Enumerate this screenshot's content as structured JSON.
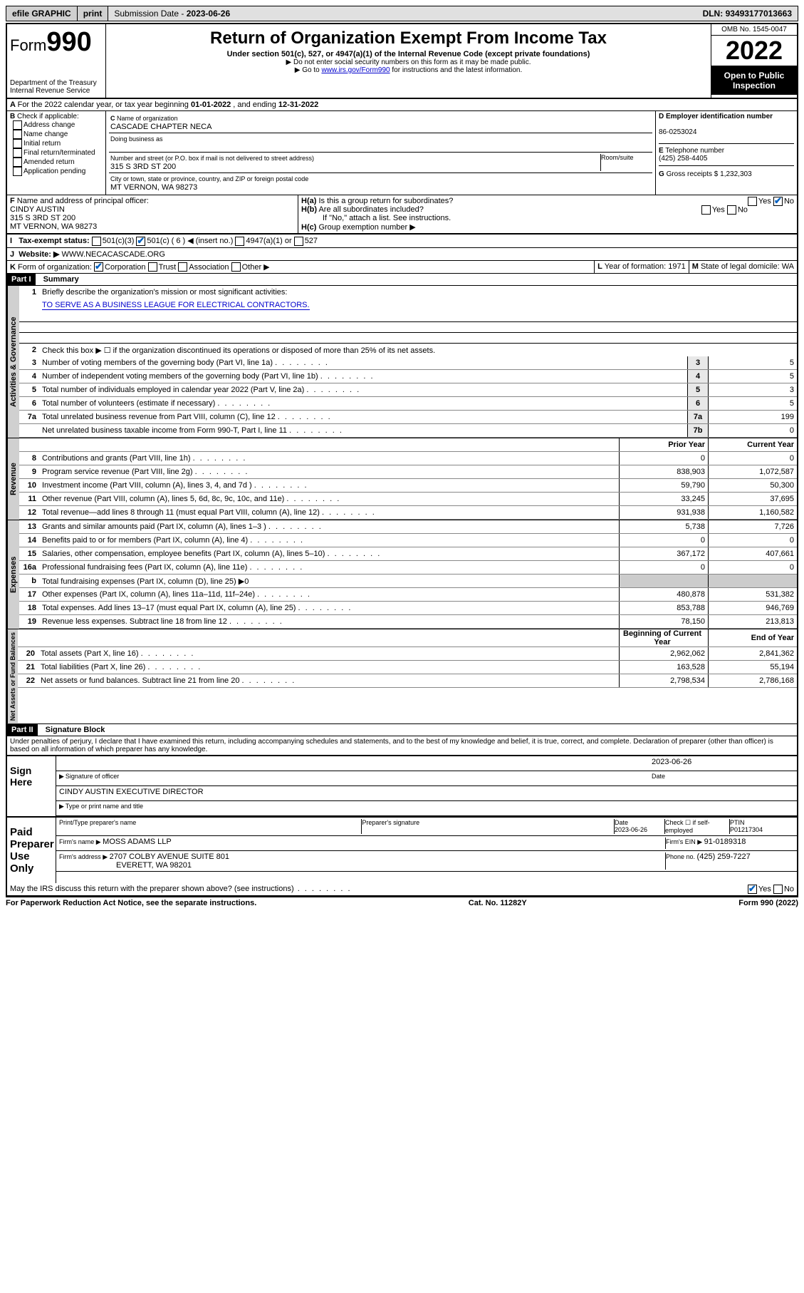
{
  "topbar": {
    "efile": "efile GRAPHIC",
    "print": "print",
    "submission_label": "Submission Date - ",
    "submission_date": "2023-06-26",
    "dln_label": "DLN: ",
    "dln": "93493177013663"
  },
  "header": {
    "form_prefix": "Form",
    "form_number": "990",
    "dept": "Department of the Treasury",
    "irs": "Internal Revenue Service",
    "title": "Return of Organization Exempt From Income Tax",
    "subtitle": "Under section 501(c), 527, or 4947(a)(1) of the Internal Revenue Code (except private foundations)",
    "note1": "▶ Do not enter social security numbers on this form as it may be made public.",
    "note2_pre": "▶ Go to ",
    "note2_link": "www.irs.gov/Form990",
    "note2_post": " for instructions and the latest information.",
    "omb": "OMB No. 1545-0047",
    "year": "2022",
    "inspection": "Open to Public Inspection"
  },
  "period": {
    "text_pre": "For the 2022 calendar year, or tax year beginning ",
    "begin": "01-01-2022",
    "mid": " , and ending ",
    "end": "12-31-2022"
  },
  "boxB": {
    "label": "Check if applicable:",
    "items": [
      "Address change",
      "Name change",
      "Initial return",
      "Final return/terminated",
      "Amended return",
      "Application pending"
    ]
  },
  "boxC": {
    "name_label": "Name of organization",
    "name": "CASCADE CHAPTER NECA",
    "dba_label": "Doing business as",
    "street_label": "Number and street (or P.O. box if mail is not delivered to street address)",
    "room_label": "Room/suite",
    "street": "315 S 3RD ST 200",
    "city_label": "City or town, state or province, country, and ZIP or foreign postal code",
    "city": "MT VERNON, WA  98273"
  },
  "boxD": {
    "label": "Employer identification number",
    "value": "86-0253024"
  },
  "boxE": {
    "label": "Telephone number",
    "value": "(425) 258-4405"
  },
  "boxF": {
    "label": "Name and address of principal officer:",
    "name": "CINDY AUSTIN",
    "addr1": "315 S 3RD ST 200",
    "addr2": "MT VERNON, WA  98273"
  },
  "boxG": {
    "label": "Gross receipts $ ",
    "value": "1,232,303"
  },
  "boxH": {
    "a": "Is this a group return for subordinates?",
    "b": "Are all subordinates included?",
    "note": "If \"No,\" attach a list. See instructions.",
    "c": "Group exemption number ▶",
    "yes": "Yes",
    "no": "No"
  },
  "boxI": {
    "label": "Tax-exempt status:",
    "opts": [
      "501(c)(3)",
      "501(c) ( 6 ) ◀ (insert no.)",
      "4947(a)(1) or",
      "527"
    ]
  },
  "boxJ": {
    "label": "Website: ▶",
    "value": "WWW.NECACASCADE.ORG"
  },
  "boxK": {
    "label": "Form of organization:",
    "opts": [
      "Corporation",
      "Trust",
      "Association",
      "Other ▶"
    ]
  },
  "boxL": {
    "label": "Year of formation: ",
    "value": "1971"
  },
  "boxM": {
    "label": "State of legal domicile: ",
    "value": "WA"
  },
  "part1": {
    "hdr": "Part I",
    "title": "Summary",
    "q1": "Briefly describe the organization's mission or most significant activities:",
    "mission": "TO SERVE AS A BUSINESS LEAGUE FOR ELECTRICAL CONTRACTORS.",
    "q2": "Check this box ▶ ☐  if the organization discontinued its operations or disposed of more than 25% of its net assets.",
    "lines_gov": [
      {
        "n": "3",
        "t": "Number of voting members of the governing body (Part VI, line 1a)",
        "box": "3",
        "v": "5"
      },
      {
        "n": "4",
        "t": "Number of independent voting members of the governing body (Part VI, line 1b)",
        "box": "4",
        "v": "5"
      },
      {
        "n": "5",
        "t": "Total number of individuals employed in calendar year 2022 (Part V, line 2a)",
        "box": "5",
        "v": "3"
      },
      {
        "n": "6",
        "t": "Total number of volunteers (estimate if necessary)",
        "box": "6",
        "v": "5"
      },
      {
        "n": "7a",
        "t": "Total unrelated business revenue from Part VIII, column (C), line 12",
        "box": "7a",
        "v": "199"
      },
      {
        "n": "",
        "t": "Net unrelated business taxable income from Form 990-T, Part I, line 11",
        "box": "7b",
        "v": "0"
      }
    ],
    "col_prior": "Prior Year",
    "col_current": "Current Year",
    "lines_rev": [
      {
        "n": "8",
        "t": "Contributions and grants (Part VIII, line 1h)",
        "p": "0",
        "c": "0"
      },
      {
        "n": "9",
        "t": "Program service revenue (Part VIII, line 2g)",
        "p": "838,903",
        "c": "1,072,587"
      },
      {
        "n": "10",
        "t": "Investment income (Part VIII, column (A), lines 3, 4, and 7d )",
        "p": "59,790",
        "c": "50,300"
      },
      {
        "n": "11",
        "t": "Other revenue (Part VIII, column (A), lines 5, 6d, 8c, 9c, 10c, and 11e)",
        "p": "33,245",
        "c": "37,695"
      },
      {
        "n": "12",
        "t": "Total revenue—add lines 8 through 11 (must equal Part VIII, column (A), line 12)",
        "p": "931,938",
        "c": "1,160,582"
      }
    ],
    "lines_exp": [
      {
        "n": "13",
        "t": "Grants and similar amounts paid (Part IX, column (A), lines 1–3 )",
        "p": "5,738",
        "c": "7,726"
      },
      {
        "n": "14",
        "t": "Benefits paid to or for members (Part IX, column (A), line 4)",
        "p": "0",
        "c": "0"
      },
      {
        "n": "15",
        "t": "Salaries, other compensation, employee benefits (Part IX, column (A), lines 5–10)",
        "p": "367,172",
        "c": "407,661"
      },
      {
        "n": "16a",
        "t": "Professional fundraising fees (Part IX, column (A), line 11e)",
        "p": "0",
        "c": "0"
      },
      {
        "n": "b",
        "t": "Total fundraising expenses (Part IX, column (D), line 25) ▶0",
        "p": "",
        "c": ""
      },
      {
        "n": "17",
        "t": "Other expenses (Part IX, column (A), lines 11a–11d, 11f–24e)",
        "p": "480,878",
        "c": "531,382"
      },
      {
        "n": "18",
        "t": "Total expenses. Add lines 13–17 (must equal Part IX, column (A), line 25)",
        "p": "853,788",
        "c": "946,769"
      },
      {
        "n": "19",
        "t": "Revenue less expenses. Subtract line 18 from line 12",
        "p": "78,150",
        "c": "213,813"
      }
    ],
    "col_begin": "Beginning of Current Year",
    "col_end": "End of Year",
    "lines_net": [
      {
        "n": "20",
        "t": "Total assets (Part X, line 16)",
        "p": "2,962,062",
        "c": "2,841,362"
      },
      {
        "n": "21",
        "t": "Total liabilities (Part X, line 26)",
        "p": "163,528",
        "c": "55,194"
      },
      {
        "n": "22",
        "t": "Net assets or fund balances. Subtract line 21 from line 20",
        "p": "2,798,534",
        "c": "2,786,168"
      }
    ],
    "vtab_gov": "Activities & Governance",
    "vtab_rev": "Revenue",
    "vtab_exp": "Expenses",
    "vtab_net": "Net Assets or Fund Balances"
  },
  "part2": {
    "hdr": "Part II",
    "title": "Signature Block",
    "decl": "Under penalties of perjury, I declare that I have examined this return, including accompanying schedules and statements, and to the best of my knowledge and belief, it is true, correct, and complete. Declaration of preparer (other than officer) is based on all information of which preparer has any knowledge.",
    "sign_here": "Sign Here",
    "sig_officer": "Signature of officer",
    "sig_date": "Date",
    "sig_date_val": "2023-06-26",
    "officer_name": "CINDY AUSTIN  EXECUTIVE DIRECTOR",
    "type_name": "Type or print name and title",
    "paid": "Paid Preparer Use Only",
    "prep_name_lbl": "Print/Type preparer's name",
    "prep_sig_lbl": "Preparer's signature",
    "prep_date_lbl": "Date",
    "prep_date": "2023-06-26",
    "check_self": "Check ☐ if self-employed",
    "ptin_lbl": "PTIN",
    "ptin": "P01217304",
    "firm_name_lbl": "Firm's name   ▶ ",
    "firm_name": "MOSS ADAMS LLP",
    "firm_ein_lbl": "Firm's EIN ▶ ",
    "firm_ein": "91-0189318",
    "firm_addr_lbl": "Firm's address ▶ ",
    "firm_addr1": "2707 COLBY AVENUE SUITE 801",
    "firm_addr2": "EVERETT, WA  98201",
    "phone_lbl": "Phone no. ",
    "phone": "(425) 259-7227",
    "discuss": "May the IRS discuss this return with the preparer shown above? (see instructions)",
    "yes": "Yes",
    "no": "No"
  },
  "footer": {
    "left": "For Paperwork Reduction Act Notice, see the separate instructions.",
    "mid": "Cat. No. 11282Y",
    "right": "Form 990 (2022)"
  }
}
